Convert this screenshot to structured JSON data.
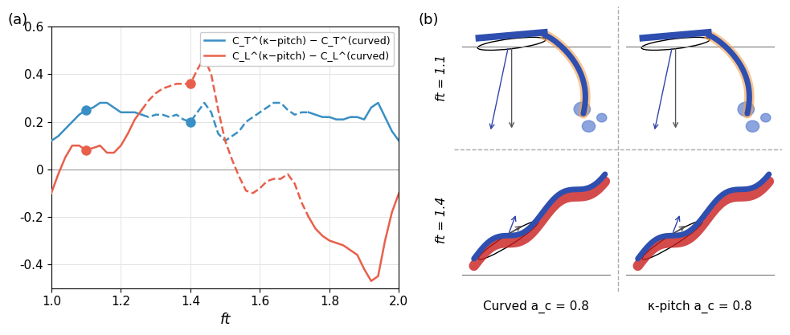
{
  "chart_data": {
    "type": "line",
    "panel_label": "(a)",
    "x_label": "ft",
    "x": [
      1.0,
      1.02,
      1.04,
      1.06,
      1.08,
      1.1,
      1.12,
      1.14,
      1.16,
      1.18,
      1.2,
      1.22,
      1.24,
      1.26,
      1.28,
      1.3,
      1.32,
      1.34,
      1.36,
      1.38,
      1.4,
      1.42,
      1.44,
      1.46,
      1.48,
      1.5,
      1.52,
      1.54,
      1.56,
      1.58,
      1.6,
      1.62,
      1.64,
      1.66,
      1.68,
      1.7,
      1.72,
      1.74,
      1.76,
      1.78,
      1.8,
      1.82,
      1.84,
      1.86,
      1.88,
      1.9,
      1.92,
      1.94,
      1.96,
      1.98,
      2.0
    ],
    "series": [
      {
        "name": "C_T^(κ−pitch) − C_T^(curved)",
        "color": "#3a8fc4",
        "line_style": "solid",
        "values": [
          0.12,
          0.14,
          0.17,
          0.2,
          0.23,
          0.25,
          0.26,
          0.28,
          0.28,
          0.26,
          0.24,
          0.24,
          0.24,
          0.23,
          null,
          null,
          null,
          null,
          null,
          null,
          null,
          null,
          null,
          null,
          null,
          null,
          null,
          null,
          null,
          null,
          null,
          null,
          null,
          null,
          null,
          null,
          null,
          0.24,
          0.23,
          0.22,
          0.22,
          0.21,
          0.21,
          0.22,
          0.22,
          0.21,
          0.26,
          0.28,
          0.22,
          0.16,
          0.12
        ]
      },
      {
        "name": "C_T^(κ−pitch) − C_T^(curved)",
        "color": "#3a8fc4",
        "line_style": "dashed",
        "values": [
          null,
          null,
          null,
          null,
          null,
          null,
          null,
          null,
          null,
          null,
          null,
          null,
          null,
          0.23,
          0.22,
          0.23,
          0.23,
          0.22,
          0.23,
          0.21,
          0.2,
          0.24,
          0.28,
          0.24,
          0.15,
          0.12,
          0.14,
          0.16,
          0.2,
          0.22,
          0.24,
          0.26,
          0.28,
          0.28,
          0.25,
          0.23,
          0.24,
          0.24,
          null,
          null,
          null,
          null,
          null,
          null,
          null,
          null,
          null,
          null,
          null,
          null,
          null
        ]
      },
      {
        "name": "C_L^(κ−pitch) − C_L^(curved)",
        "color": "#e8604c",
        "line_style": "solid",
        "values": [
          -0.1,
          -0.02,
          0.05,
          0.1,
          0.1,
          0.08,
          0.09,
          0.1,
          0.07,
          0.07,
          0.1,
          0.15,
          0.21,
          0.25,
          null,
          null,
          null,
          null,
          null,
          null,
          null,
          null,
          null,
          null,
          null,
          null,
          null,
          null,
          null,
          null,
          null,
          null,
          null,
          null,
          null,
          null,
          null,
          -0.2,
          -0.25,
          -0.28,
          -0.3,
          -0.31,
          -0.32,
          -0.34,
          -0.36,
          -0.42,
          -0.47,
          -0.45,
          -0.3,
          -0.18,
          -0.1
        ]
      },
      {
        "name": "C_L^(κ−pitch) − C_L^(curved)",
        "color": "#e8604c",
        "line_style": "dashed",
        "values": [
          null,
          null,
          null,
          null,
          null,
          null,
          null,
          null,
          null,
          null,
          null,
          null,
          null,
          0.25,
          0.29,
          0.32,
          0.34,
          0.35,
          0.36,
          0.36,
          0.36,
          0.42,
          0.47,
          0.4,
          0.25,
          0.12,
          0.04,
          -0.03,
          -0.09,
          -0.1,
          -0.08,
          -0.05,
          -0.04,
          -0.04,
          -0.02,
          -0.06,
          -0.14,
          -0.2,
          null,
          null,
          null,
          null,
          null,
          null,
          null,
          null,
          null,
          null,
          null,
          null,
          null
        ]
      },
      {
        "name": "C_T^(κ−pitch) − C_T^(curved)",
        "color": "#3a8fc4",
        "type": "scatter",
        "marker": "circle",
        "x": [
          1.1,
          1.4
        ],
        "values": [
          0.25,
          0.2
        ]
      },
      {
        "name": "C_L^(κ−pitch) − C_L^(curved)",
        "color": "#e8604c",
        "type": "scatter",
        "marker": "circle",
        "x": [
          1.1,
          1.4
        ],
        "values": [
          0.08,
          0.36
        ]
      }
    ],
    "xlim": [
      1.0,
      2.0
    ],
    "xticks": [
      1.0,
      1.2,
      1.4,
      1.6,
      1.8,
      2.0
    ],
    "ylim": [
      -0.5,
      0.6
    ],
    "yticks": [
      -0.4,
      -0.2,
      0,
      0.2,
      0.4,
      0.6
    ],
    "grid": true,
    "legend": "upper right"
  },
  "panel_b": {
    "label": "(b)",
    "rows": [
      "ft = 1.1",
      "ft = 1.4"
    ],
    "columns": [
      "Curved a_c = 0.8",
      "κ-pitch a_c = 0.8"
    ]
  }
}
